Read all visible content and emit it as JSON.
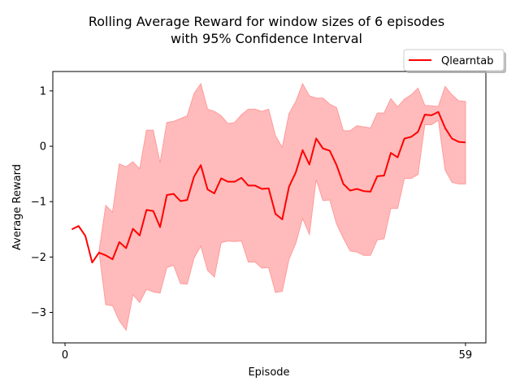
{
  "chart_data": {
    "type": "line",
    "title": "Rolling Average Reward for window sizes of 6 episodes\nwith 95% Confidence Interval",
    "xlabel": "Episode",
    "ylabel": "Average Reward",
    "xlim": [
      -1.8,
      62.0
    ],
    "ylim": [
      -3.55,
      1.35
    ],
    "xticks": [
      0,
      59
    ],
    "yticks": [
      -3,
      -2,
      -1,
      0,
      1
    ],
    "legend_position": "top-right",
    "line_color": "#ff0000",
    "band_color": "#ffbbbb",
    "band_edge_color": "#ff9a9a",
    "series": [
      {
        "name": "Qlearntab",
        "x": [
          1,
          2,
          3,
          4,
          5,
          6,
          7,
          8,
          9,
          10,
          11,
          12,
          13,
          14,
          15,
          16,
          17,
          18,
          19,
          20,
          21,
          22,
          23,
          24,
          25,
          26,
          27,
          28,
          29,
          30,
          31,
          32,
          33,
          34,
          35,
          36,
          37,
          38,
          39,
          40,
          41,
          42,
          43,
          44,
          45,
          46,
          47,
          48,
          49,
          50,
          51,
          52,
          53,
          54,
          55,
          56,
          57,
          58,
          59
        ],
        "y": [
          -1.5,
          -1.44,
          -1.62,
          -2.1,
          -1.92,
          -1.97,
          -2.04,
          -1.73,
          -1.84,
          -1.49,
          -1.61,
          -1.15,
          -1.17,
          -1.46,
          -0.88,
          -0.86,
          -0.99,
          -0.97,
          -0.55,
          -0.34,
          -0.78,
          -0.85,
          -0.58,
          -0.64,
          -0.64,
          -0.57,
          -0.71,
          -0.71,
          -0.77,
          -0.76,
          -1.22,
          -1.32,
          -0.73,
          -0.47,
          -0.07,
          -0.33,
          0.14,
          -0.04,
          -0.08,
          -0.34,
          -0.68,
          -0.8,
          -0.77,
          -0.81,
          -0.82,
          -0.54,
          -0.53,
          -0.12,
          -0.2,
          0.14,
          0.17,
          0.26,
          0.57,
          0.56,
          0.62,
          0.33,
          0.14,
          0.08,
          0.07
        ],
        "ci_lower": [
          null,
          null,
          null,
          null,
          -1.9,
          -2.86,
          -2.88,
          -3.15,
          -3.32,
          -2.68,
          -2.82,
          -2.58,
          -2.63,
          -2.65,
          -2.19,
          -2.15,
          -2.48,
          -2.49,
          -2.02,
          -1.8,
          -2.24,
          -2.36,
          -1.74,
          -1.71,
          -1.72,
          -1.71,
          -2.09,
          -2.09,
          -2.2,
          -2.19,
          -2.64,
          -2.62,
          -2.04,
          -1.75,
          -1.3,
          -1.59,
          -0.6,
          -0.98,
          -0.97,
          -1.4,
          -1.66,
          -1.89,
          -1.91,
          -1.97,
          -1.97,
          -1.69,
          -1.67,
          -1.12,
          -1.12,
          -0.58,
          -0.58,
          -0.51,
          0.39,
          0.39,
          0.47,
          -0.43,
          -0.65,
          -0.68,
          -0.68
        ],
        "ci_upper": [
          null,
          null,
          null,
          null,
          -1.9,
          -1.07,
          -1.19,
          -0.32,
          -0.37,
          -0.28,
          -0.41,
          0.29,
          0.29,
          -0.3,
          0.43,
          0.45,
          0.5,
          0.55,
          0.95,
          1.13,
          0.67,
          0.63,
          0.55,
          0.41,
          0.43,
          0.57,
          0.67,
          0.67,
          0.63,
          0.67,
          0.19,
          -0.02,
          0.59,
          0.81,
          1.13,
          0.91,
          0.87,
          0.87,
          0.76,
          0.7,
          0.28,
          0.28,
          0.37,
          0.35,
          0.33,
          0.6,
          0.6,
          0.86,
          0.71,
          0.85,
          0.93,
          1.05,
          0.74,
          0.73,
          0.72,
          1.08,
          0.93,
          0.82,
          0.81
        ]
      }
    ]
  }
}
